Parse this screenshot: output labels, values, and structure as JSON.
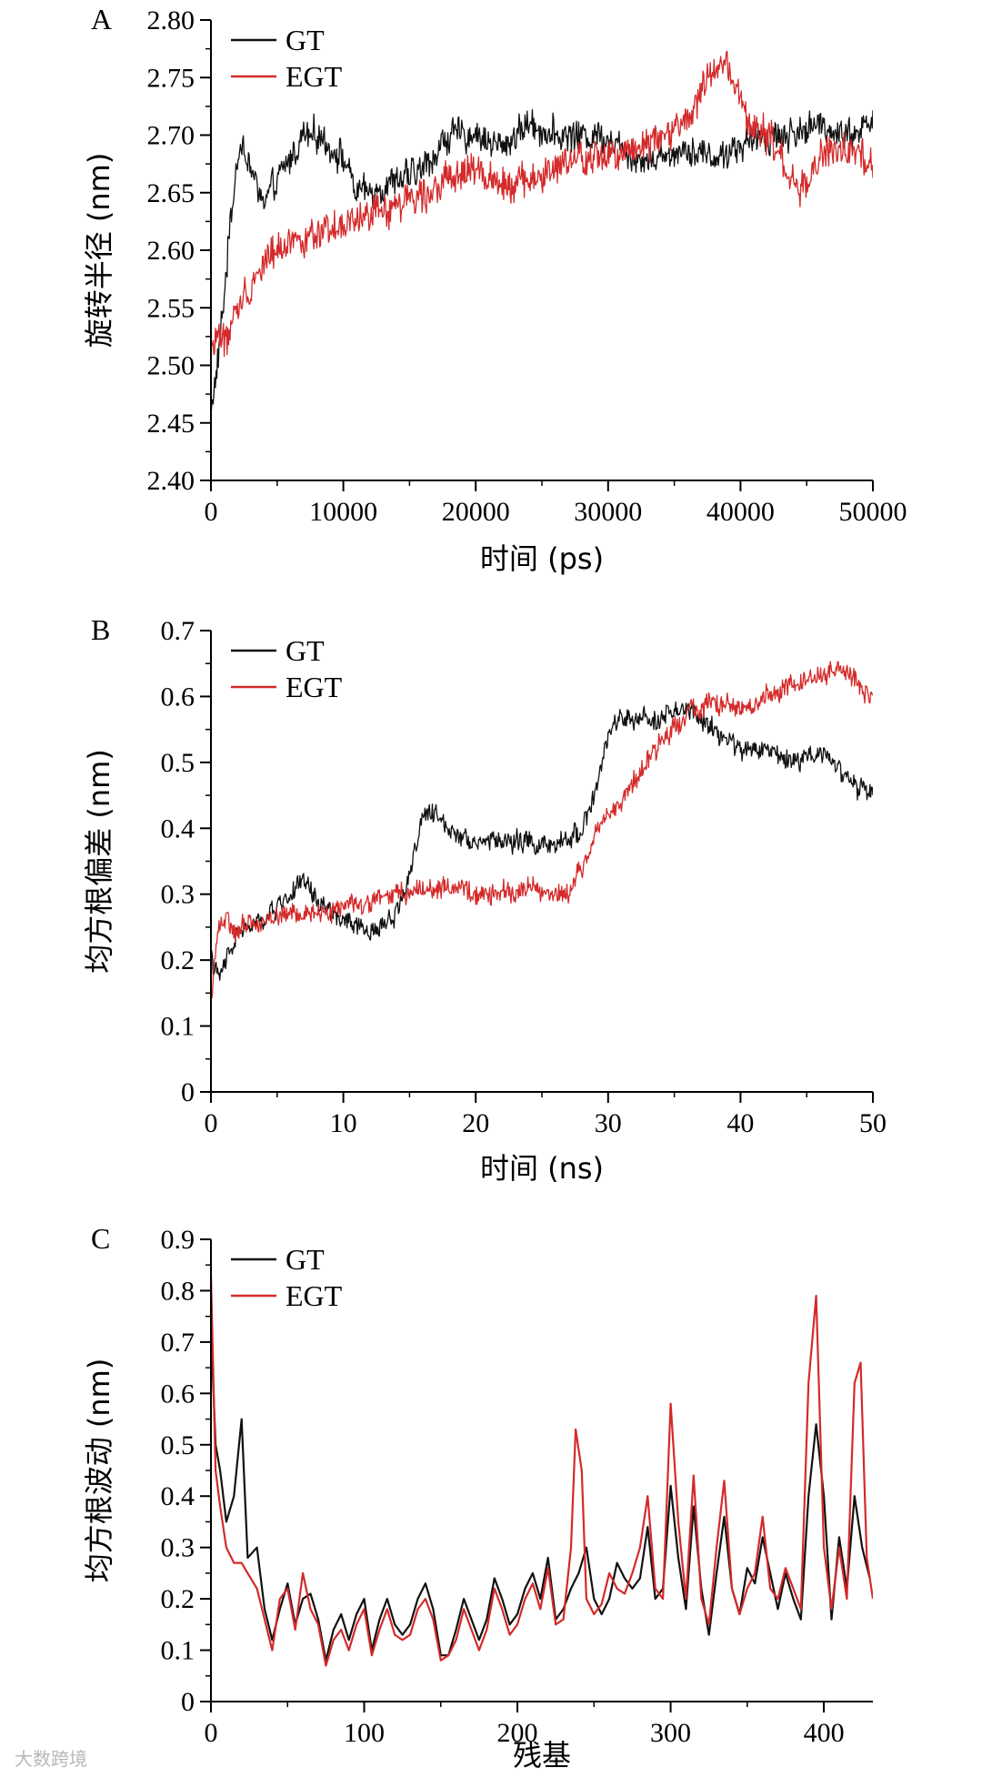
{
  "colors": {
    "gt": "#111111",
    "egt": "#d42a2a",
    "axis": "#000000"
  },
  "legend_entries": [
    "GT",
    "EGT"
  ],
  "watermark": "大数跨境",
  "chart_data": [
    {
      "type": "line",
      "panel": "A",
      "xlabel": "时间 (ps)",
      "ylabel": "旋转半径 (nm)",
      "xlim": [
        0,
        50000
      ],
      "ylim": [
        2.4,
        2.8
      ],
      "xticks": [
        0,
        10000,
        20000,
        30000,
        40000,
        50000
      ],
      "yticks": [
        2.4,
        2.45,
        2.5,
        2.55,
        2.6,
        2.65,
        2.7,
        2.75,
        2.8
      ],
      "ytick_labels": [
        "2.40",
        "2.45",
        "2.50",
        "2.55",
        "2.60",
        "2.65",
        "2.70",
        "2.75",
        "2.80"
      ],
      "legend": "top-left",
      "series": [
        {
          "name": "GT",
          "x": [
            0,
            500,
            1000,
            1500,
            2000,
            2500,
            3000,
            4000,
            5000,
            6000,
            7000,
            8000,
            9000,
            10000,
            11000,
            12000,
            14000,
            16000,
            18000,
            20000,
            22000,
            24000,
            26000,
            28000,
            30000,
            32000,
            34000,
            36000,
            38000,
            40000,
            42000,
            44000,
            46000,
            48000,
            50000
          ],
          "y": [
            2.46,
            2.5,
            2.56,
            2.63,
            2.68,
            2.69,
            2.67,
            2.64,
            2.66,
            2.68,
            2.7,
            2.7,
            2.69,
            2.68,
            2.65,
            2.65,
            2.66,
            2.67,
            2.7,
            2.7,
            2.69,
            2.71,
            2.7,
            2.7,
            2.7,
            2.68,
            2.68,
            2.69,
            2.68,
            2.69,
            2.7,
            2.7,
            2.71,
            2.7,
            2.71
          ],
          "noise": 0.012
        },
        {
          "name": "EGT",
          "x": [
            0,
            500,
            1000,
            1500,
            2000,
            3000,
            4000,
            5000,
            6000,
            7000,
            8000,
            10000,
            12000,
            14000,
            16000,
            18000,
            20000,
            22000,
            24000,
            26000,
            28000,
            30000,
            32000,
            34000,
            36000,
            37500,
            39000,
            40500,
            42000,
            43500,
            44500,
            46000,
            48000,
            50000
          ],
          "y": [
            2.51,
            2.53,
            2.52,
            2.53,
            2.55,
            2.57,
            2.59,
            2.6,
            2.61,
            2.61,
            2.61,
            2.62,
            2.63,
            2.64,
            2.65,
            2.66,
            2.67,
            2.66,
            2.66,
            2.67,
            2.68,
            2.68,
            2.69,
            2.7,
            2.71,
            2.75,
            2.76,
            2.71,
            2.7,
            2.67,
            2.65,
            2.68,
            2.69,
            2.67
          ],
          "noise": 0.013
        }
      ]
    },
    {
      "type": "line",
      "panel": "B",
      "xlabel": "时间 (ns)",
      "ylabel": "均方根偏差 (nm)",
      "xlim": [
        0,
        50
      ],
      "ylim": [
        0,
        0.7
      ],
      "xticks": [
        0,
        10,
        20,
        30,
        40,
        50
      ],
      "yticks": [
        0,
        0.1,
        0.2,
        0.3,
        0.4,
        0.5,
        0.6,
        0.7
      ],
      "ytick_labels": [
        "0",
        "0.1",
        "0.2",
        "0.3",
        "0.4",
        "0.5",
        "0.6",
        "0.7"
      ],
      "legend": "top-left",
      "series": [
        {
          "name": "GT",
          "x": [
            0,
            0.5,
            1,
            2,
            3,
            4,
            5,
            6,
            7,
            8,
            10,
            12,
            14,
            15,
            16,
            17,
            18,
            20,
            22,
            24,
            26,
            28,
            29,
            30,
            31,
            32,
            34,
            36,
            38,
            40,
            42,
            44,
            46,
            48,
            49,
            50
          ],
          "y": [
            0.21,
            0.17,
            0.19,
            0.24,
            0.25,
            0.26,
            0.28,
            0.3,
            0.32,
            0.29,
            0.26,
            0.24,
            0.27,
            0.33,
            0.42,
            0.42,
            0.4,
            0.38,
            0.38,
            0.38,
            0.37,
            0.4,
            0.45,
            0.54,
            0.57,
            0.56,
            0.57,
            0.58,
            0.55,
            0.52,
            0.52,
            0.5,
            0.52,
            0.48,
            0.46,
            0.45
          ],
          "noise": 0.014
        },
        {
          "name": "EGT",
          "x": [
            0,
            0.5,
            1,
            2,
            3,
            4,
            5,
            6,
            8,
            10,
            12,
            14,
            16,
            18,
            20,
            22,
            24,
            26,
            27,
            28,
            29,
            30,
            32,
            34,
            36,
            38,
            40,
            42,
            44,
            46,
            48,
            50
          ],
          "y": [
            0.14,
            0.25,
            0.26,
            0.24,
            0.26,
            0.26,
            0.27,
            0.27,
            0.27,
            0.28,
            0.29,
            0.3,
            0.31,
            0.31,
            0.3,
            0.3,
            0.31,
            0.3,
            0.3,
            0.34,
            0.39,
            0.42,
            0.47,
            0.53,
            0.58,
            0.59,
            0.58,
            0.6,
            0.62,
            0.63,
            0.64,
            0.59
          ],
          "noise": 0.014
        }
      ]
    },
    {
      "type": "line",
      "panel": "C",
      "xlabel": "残基",
      "ylabel": "均方根波动 (nm)",
      "xlim": [
        0,
        432
      ],
      "ylim": [
        0,
        0.9
      ],
      "xticks": [
        0,
        100,
        200,
        300,
        400
      ],
      "yticks": [
        0,
        0.1,
        0.2,
        0.3,
        0.4,
        0.5,
        0.6,
        0.7,
        0.8,
        0.9
      ],
      "ytick_labels": [
        "0",
        "0.1",
        "0.2",
        "0.3",
        "0.4",
        "0.5",
        "0.6",
        "0.7",
        "0.8",
        "0.9"
      ],
      "legend": "top-left",
      "series": [
        {
          "name": "GT",
          "x": [
            0,
            3,
            6,
            10,
            15,
            20,
            24,
            30,
            35,
            40,
            45,
            50,
            55,
            60,
            65,
            70,
            75,
            80,
            85,
            90,
            95,
            100,
            105,
            110,
            115,
            120,
            125,
            130,
            135,
            140,
            145,
            150,
            155,
            160,
            165,
            170,
            175,
            180,
            185,
            190,
            195,
            200,
            205,
            210,
            215,
            220,
            225,
            230,
            235,
            240,
            245,
            250,
            255,
            260,
            265,
            270,
            275,
            280,
            285,
            290,
            295,
            300,
            305,
            310,
            315,
            320,
            325,
            330,
            335,
            340,
            345,
            350,
            355,
            360,
            365,
            370,
            375,
            380,
            385,
            390,
            395,
            400,
            405,
            410,
            415,
            420,
            425,
            430
          ],
          "y": [
            0.73,
            0.5,
            0.45,
            0.35,
            0.4,
            0.55,
            0.28,
            0.3,
            0.18,
            0.12,
            0.18,
            0.23,
            0.15,
            0.2,
            0.21,
            0.16,
            0.08,
            0.14,
            0.17,
            0.12,
            0.17,
            0.2,
            0.1,
            0.16,
            0.2,
            0.15,
            0.13,
            0.15,
            0.2,
            0.23,
            0.18,
            0.09,
            0.09,
            0.14,
            0.2,
            0.16,
            0.12,
            0.16,
            0.24,
            0.2,
            0.15,
            0.17,
            0.22,
            0.25,
            0.2,
            0.28,
            0.16,
            0.18,
            0.22,
            0.25,
            0.3,
            0.2,
            0.17,
            0.2,
            0.27,
            0.24,
            0.22,
            0.24,
            0.34,
            0.2,
            0.22,
            0.42,
            0.28,
            0.18,
            0.38,
            0.22,
            0.13,
            0.25,
            0.36,
            0.22,
            0.17,
            0.26,
            0.23,
            0.32,
            0.25,
            0.18,
            0.25,
            0.2,
            0.16,
            0.4,
            0.54,
            0.4,
            0.16,
            0.32,
            0.22,
            0.4,
            0.3,
            0.24
          ],
          "noise": 0.0
        },
        {
          "name": "EGT",
          "x": [
            0,
            3,
            6,
            10,
            15,
            20,
            24,
            30,
            35,
            40,
            45,
            50,
            55,
            60,
            65,
            70,
            75,
            80,
            85,
            90,
            95,
            100,
            105,
            110,
            115,
            120,
            125,
            130,
            135,
            140,
            145,
            150,
            155,
            160,
            165,
            170,
            175,
            180,
            185,
            190,
            195,
            200,
            205,
            210,
            215,
            220,
            225,
            230,
            235,
            238,
            242,
            245,
            250,
            255,
            260,
            265,
            270,
            275,
            280,
            285,
            290,
            295,
            300,
            305,
            310,
            315,
            320,
            325,
            330,
            335,
            340,
            345,
            350,
            355,
            360,
            365,
            370,
            375,
            380,
            385,
            390,
            395,
            400,
            405,
            410,
            415,
            420,
            424,
            428,
            432
          ],
          "y": [
            0.83,
            0.45,
            0.38,
            0.3,
            0.27,
            0.27,
            0.25,
            0.22,
            0.16,
            0.1,
            0.2,
            0.22,
            0.14,
            0.25,
            0.18,
            0.15,
            0.07,
            0.12,
            0.14,
            0.1,
            0.15,
            0.18,
            0.09,
            0.14,
            0.18,
            0.13,
            0.12,
            0.13,
            0.18,
            0.2,
            0.16,
            0.08,
            0.09,
            0.12,
            0.18,
            0.14,
            0.1,
            0.14,
            0.22,
            0.18,
            0.13,
            0.15,
            0.2,
            0.23,
            0.18,
            0.26,
            0.15,
            0.16,
            0.3,
            0.53,
            0.45,
            0.2,
            0.17,
            0.19,
            0.25,
            0.22,
            0.21,
            0.25,
            0.3,
            0.4,
            0.22,
            0.2,
            0.58,
            0.35,
            0.2,
            0.44,
            0.2,
            0.15,
            0.3,
            0.43,
            0.22,
            0.17,
            0.22,
            0.25,
            0.36,
            0.22,
            0.2,
            0.26,
            0.22,
            0.18,
            0.62,
            0.79,
            0.3,
            0.18,
            0.3,
            0.2,
            0.62,
            0.66,
            0.28,
            0.2
          ],
          "noise": 0.0
        }
      ]
    }
  ]
}
